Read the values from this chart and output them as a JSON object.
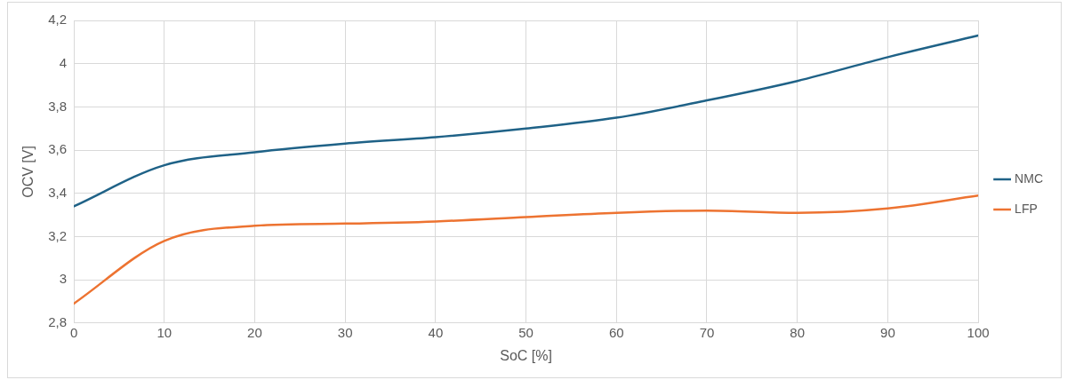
{
  "chart_data": {
    "type": "line",
    "xlabel": "SoC [%]",
    "ylabel": "OCV [V]",
    "x": [
      0,
      10,
      20,
      30,
      40,
      50,
      60,
      70,
      80,
      90,
      100
    ],
    "series": [
      {
        "name": "NMC",
        "color": "#1f6287",
        "values": [
          3.34,
          3.53,
          3.59,
          3.63,
          3.66,
          3.7,
          3.75,
          3.83,
          3.92,
          4.03,
          4.13
        ]
      },
      {
        "name": "LFP",
        "color": "#ed7331",
        "values": [
          2.89,
          3.18,
          3.25,
          3.26,
          3.27,
          3.29,
          3.31,
          3.32,
          3.31,
          3.33,
          3.39
        ]
      }
    ],
    "xlim": [
      0,
      100
    ],
    "xticks": [
      0,
      10,
      20,
      30,
      40,
      50,
      60,
      70,
      80,
      90,
      100
    ],
    "ylim": [
      2.8,
      4.2
    ],
    "yticks": [
      {
        "value": 2.8,
        "label": "2,8"
      },
      3,
      {
        "value": 3.2,
        "label": "3,2"
      },
      {
        "value": 3.4,
        "label": "3,4"
      },
      {
        "value": 3.6,
        "label": "3,6"
      },
      {
        "value": 3.8,
        "label": "3,8"
      },
      4,
      {
        "value": 4.2,
        "label": "4,2"
      }
    ],
    "grid": true,
    "legend": "right",
    "marker": "none",
    "line_style": "solid"
  }
}
